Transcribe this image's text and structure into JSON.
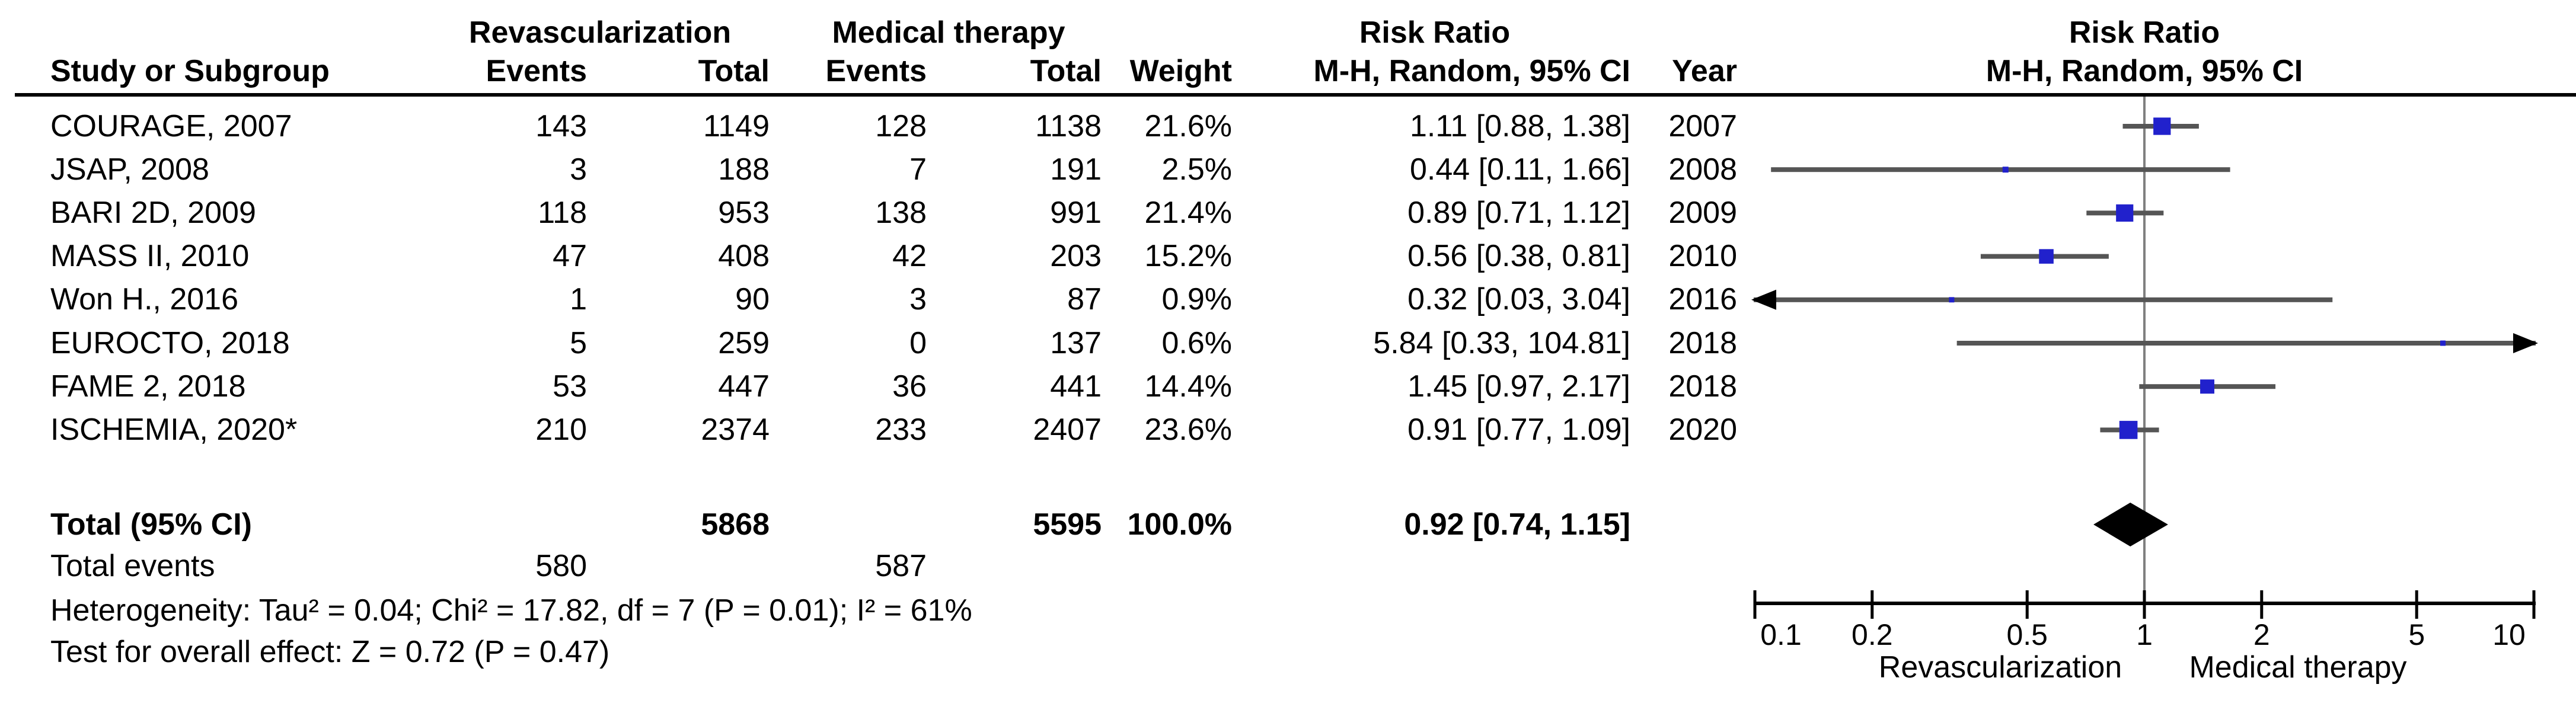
{
  "table": {
    "headers": {
      "study": "Study or Subgroup",
      "group1": "Revascularization",
      "group2": "Medical therapy",
      "events": "Events",
      "total": "Total",
      "weight": "Weight",
      "risk_ratio": "Risk Ratio",
      "method_ci": "M-H, Random, 95% CI",
      "year": "Year"
    },
    "rows": [
      {
        "study": "COURAGE, 2007",
        "events1": "143",
        "total1": "1149",
        "events2": "128",
        "total2": "1138",
        "weight": "21.6%",
        "ci_text": "1.11 [0.88, 1.38]",
        "year": "2007"
      },
      {
        "study": "JSAP, 2008",
        "events1": "3",
        "total1": "188",
        "events2": "7",
        "total2": "191",
        "weight": "2.5%",
        "ci_text": "0.44 [0.11, 1.66]",
        "year": "2008"
      },
      {
        "study": "BARI 2D, 2009",
        "events1": "118",
        "total1": "953",
        "events2": "138",
        "total2": "991",
        "weight": "21.4%",
        "ci_text": "0.89 [0.71, 1.12]",
        "year": "2009"
      },
      {
        "study": "MASS II, 2010",
        "events1": "47",
        "total1": "408",
        "events2": "42",
        "total2": "203",
        "weight": "15.2%",
        "ci_text": "0.56 [0.38, 0.81]",
        "year": "2010"
      },
      {
        "study": "Won H., 2016",
        "events1": "1",
        "total1": "90",
        "events2": "3",
        "total2": "87",
        "weight": "0.9%",
        "ci_text": "0.32 [0.03, 3.04]",
        "year": "2016"
      },
      {
        "study": "EUROCTO, 2018",
        "events1": "5",
        "total1": "259",
        "events2": "0",
        "total2": "137",
        "weight": "0.6%",
        "ci_text": "5.84 [0.33, 104.81]",
        "year": "2018"
      },
      {
        "study": "FAME 2, 2018",
        "events1": "53",
        "total1": "447",
        "events2": "36",
        "total2": "441",
        "weight": "14.4%",
        "ci_text": "1.45 [0.97, 2.17]",
        "year": "2018"
      },
      {
        "study": "ISCHEMIA, 2020*",
        "events1": "210",
        "total1": "2374",
        "events2": "233",
        "total2": "2407",
        "weight": "23.6%",
        "ci_text": "0.91 [0.77, 1.09]",
        "year": "2020"
      }
    ],
    "total_row": {
      "label": "Total (95% CI)",
      "total1": "5868",
      "total2": "5595",
      "weight": "100.0%",
      "ci_text": "0.92 [0.74, 1.15]"
    },
    "total_events_row": {
      "label": "Total events",
      "events1": "580",
      "events2": "587"
    },
    "heterogeneity": "Heterogeneity: Tau² = 0.04; Chi² = 17.82, df = 7 (P = 0.01); I² = 61%",
    "overall_effect": "Test for overall effect: Z = 0.72 (P = 0.47)"
  },
  "chart_data": {
    "type": "forest",
    "x_scale": "log10",
    "title": "Risk Ratio",
    "subtitle": "M-H, Random, 95% CI",
    "axis": {
      "min": 0.1,
      "max": 10,
      "ticks": [
        0.1,
        0.2,
        0.5,
        1,
        2,
        5,
        10
      ],
      "tick_labels": [
        "0.1",
        "0.2",
        "0.5",
        "1",
        "2",
        "5",
        "10"
      ],
      "ref_line": 1,
      "left_direction_label": "Revascularization",
      "right_direction_label": "Medical therapy"
    },
    "studies": [
      {
        "name": "COURAGE, 2007",
        "rr": 1.11,
        "ci_low": 0.88,
        "ci_high": 1.38,
        "weight_pct": 21.6,
        "year": 2007
      },
      {
        "name": "JSAP, 2008",
        "rr": 0.44,
        "ci_low": 0.11,
        "ci_high": 1.66,
        "weight_pct": 2.5,
        "year": 2008
      },
      {
        "name": "BARI 2D, 2009",
        "rr": 0.89,
        "ci_low": 0.71,
        "ci_high": 1.12,
        "weight_pct": 21.4,
        "year": 2009
      },
      {
        "name": "MASS II, 2010",
        "rr": 0.56,
        "ci_low": 0.38,
        "ci_high": 0.81,
        "weight_pct": 15.2,
        "year": 2010
      },
      {
        "name": "Won H., 2016",
        "rr": 0.32,
        "ci_low": 0.03,
        "ci_high": 3.04,
        "weight_pct": 0.9,
        "year": 2016
      },
      {
        "name": "EUROCTO, 2018",
        "rr": 5.84,
        "ci_low": 0.33,
        "ci_high": 104.81,
        "weight_pct": 0.6,
        "year": 2018
      },
      {
        "name": "FAME 2, 2018",
        "rr": 1.45,
        "ci_low": 0.97,
        "ci_high": 2.17,
        "weight_pct": 14.4,
        "year": 2018
      },
      {
        "name": "ISCHEMIA, 2020*",
        "rr": 0.91,
        "ci_low": 0.77,
        "ci_high": 1.09,
        "weight_pct": 23.6,
        "year": 2020
      }
    ],
    "total": {
      "name": "Total (95% CI)",
      "rr": 0.92,
      "ci_low": 0.74,
      "ci_high": 1.15,
      "weight_pct": 100.0
    }
  },
  "colors": {
    "marker_blue": "#2121CC",
    "ci_line_gray": "#555555",
    "ref_line_gray": "#7F7F7F",
    "axis_black": "#000000",
    "diamond_black": "#000000"
  }
}
